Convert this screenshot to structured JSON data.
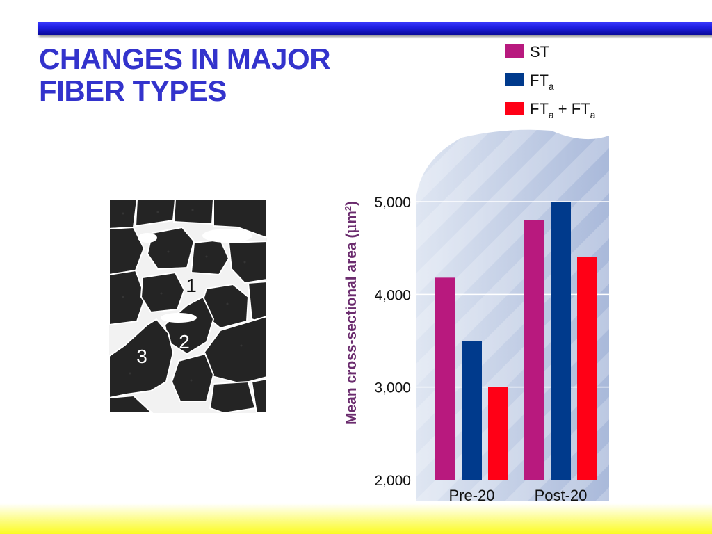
{
  "slide": {
    "title_lines": [
      "CHANGES IN MAJOR",
      "FIBER TYPES"
    ]
  },
  "micrograph": {
    "labels": [
      "1",
      "2",
      "3"
    ]
  },
  "colors": {
    "title": "#3333cc",
    "ST": "#b8197e",
    "FTa": "#003a8c",
    "FTab": "#ff0016",
    "axis_label": "#6b2c6e",
    "top_bar": "#1d1de0",
    "bottom_band": "#fbfb22"
  },
  "chart_data": {
    "type": "bar",
    "categories": [
      "Pre-20",
      "Post-20"
    ],
    "series": [
      {
        "name": "ST",
        "name_parts": [
          "ST"
        ],
        "values": [
          4180,
          4800
        ],
        "color": "#b8197e"
      },
      {
        "name": "FTa",
        "name_parts": [
          "FT",
          "a"
        ],
        "values": [
          3500,
          5000
        ],
        "color": "#003a8c"
      },
      {
        "name": "FTa + FTa",
        "name_parts": [
          "FT",
          "a",
          " + FT",
          "a"
        ],
        "values": [
          3000,
          4400
        ],
        "color": "#ff0016"
      }
    ],
    "ylabel_parts": [
      "Mean cross-sectional area (",
      "μ",
      "m",
      "2",
      ")"
    ],
    "yticks": [
      "5,000",
      "4,000",
      "3,000",
      "2,000"
    ],
    "ytick_values": [
      5000,
      4000,
      3000,
      2000
    ],
    "ylim": [
      2000,
      5000
    ],
    "grid": true,
    "legend_position": "top"
  }
}
